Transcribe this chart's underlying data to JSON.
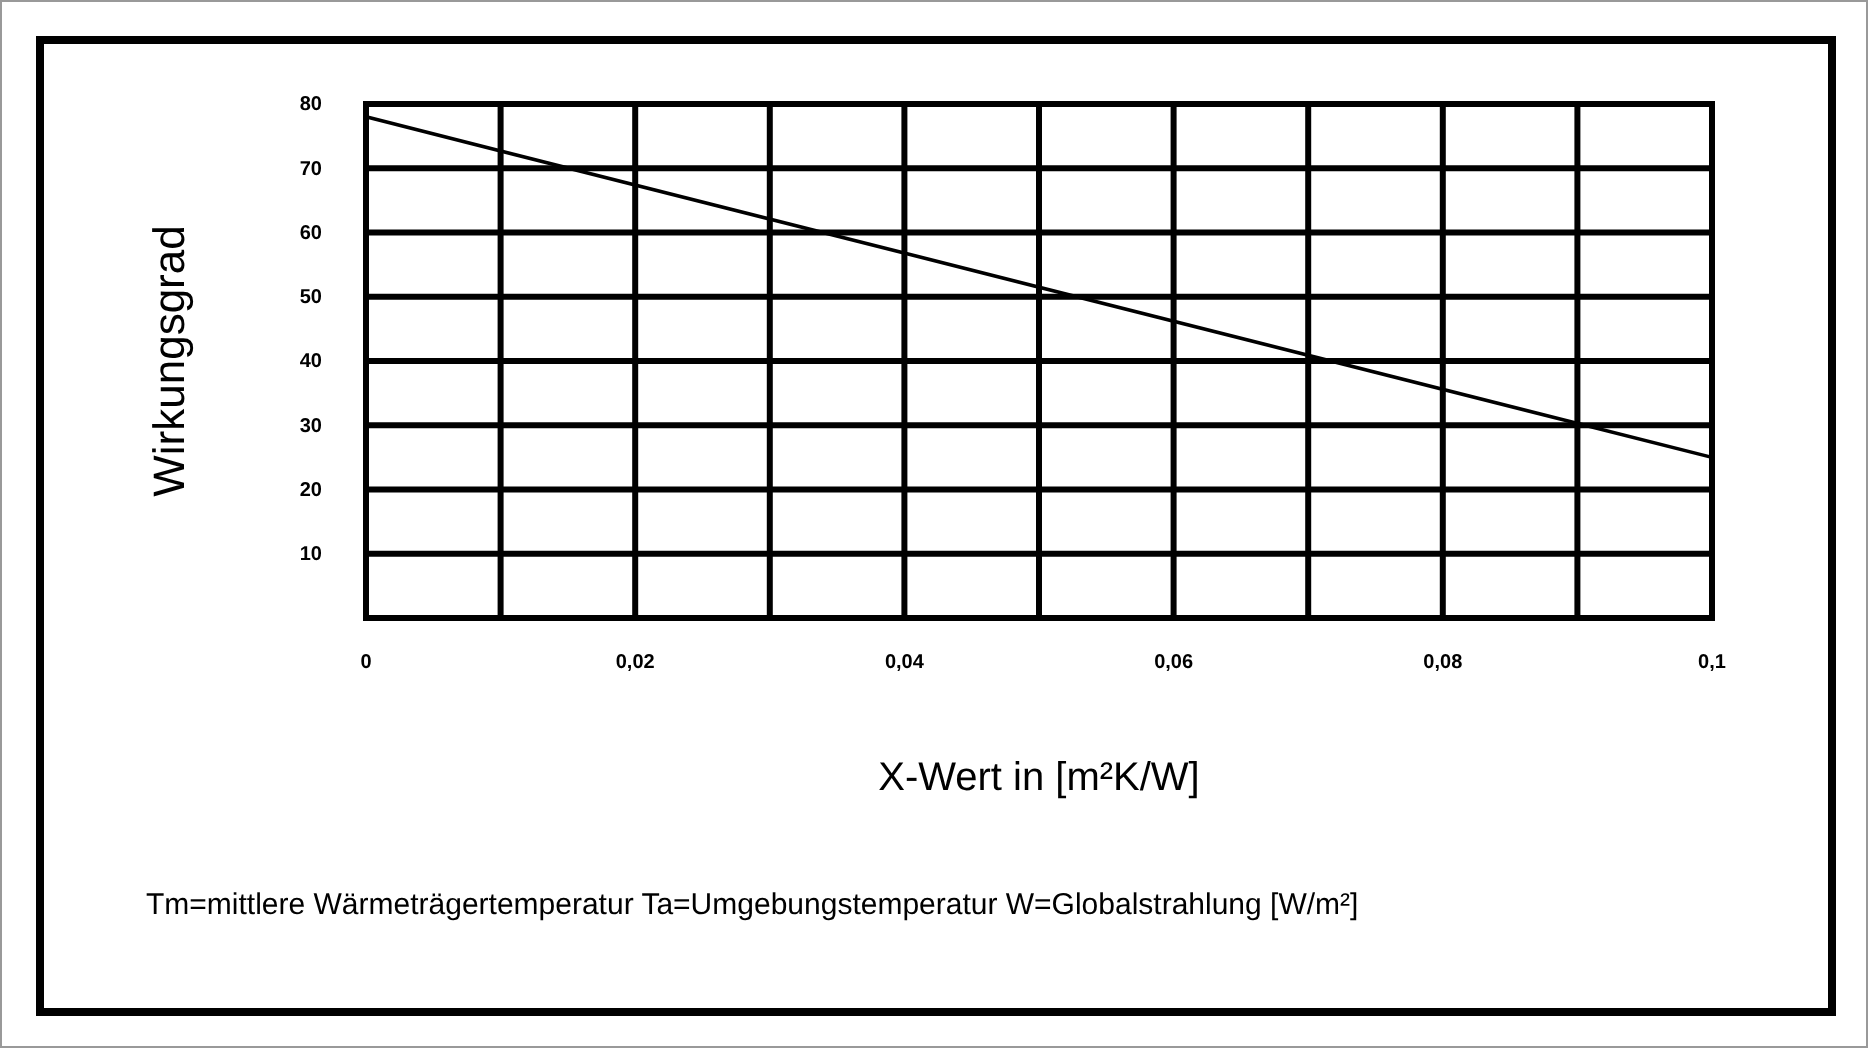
{
  "chart_data": {
    "type": "line",
    "xlabel": "X-Wert in [m²K/W]",
    "ylabel": "Wirkungsgrad",
    "annotations": [
      "Tm=mittlere Wärmeträgertemperatur Ta=Umgebungstemperatur W=Globalstrahlung [W/m²]"
    ],
    "x": [
      0,
      0.1
    ],
    "series": [
      {
        "color": "#000000",
        "values": [
          78,
          25
        ]
      }
    ],
    "xlim": [
      0,
      0.1
    ],
    "xticks": [
      {
        "value": 0,
        "label": "0"
      },
      {
        "value": 0.01,
        "label": null
      },
      {
        "value": 0.02,
        "label": "0,02"
      },
      {
        "value": 0.03,
        "label": null
      },
      {
        "value": 0.04,
        "label": "0,04"
      },
      {
        "value": 0.05,
        "label": null
      },
      {
        "value": 0.06,
        "label": "0,06"
      },
      {
        "value": 0.07,
        "label": null
      },
      {
        "value": 0.08,
        "label": "0,08"
      },
      {
        "value": 0.09,
        "label": null
      },
      {
        "value": 0.1,
        "label": "0,1"
      }
    ],
    "ylim": [
      0,
      80
    ],
    "yticks": [
      {
        "value": 0,
        "label": null
      },
      10,
      20,
      30,
      40,
      50,
      60,
      70,
      80
    ],
    "grid": true,
    "marker": "none",
    "line_style": "solid"
  }
}
